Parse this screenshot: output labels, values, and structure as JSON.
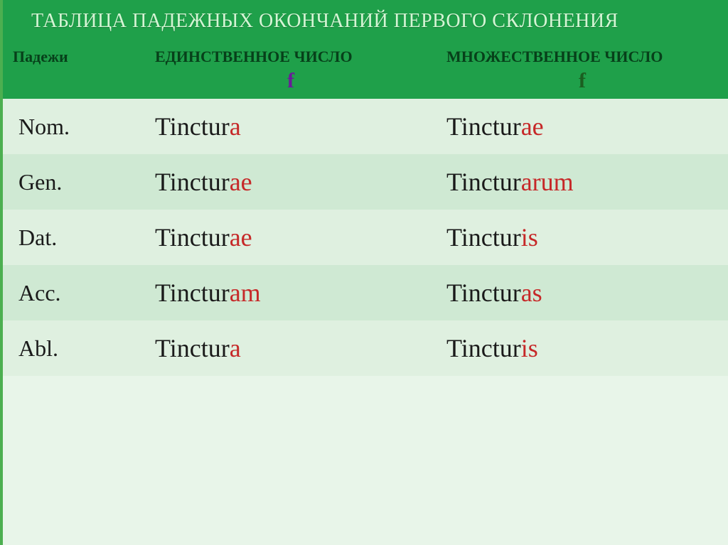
{
  "title": "ТАБЛИЦА ПАДЕЖНЫХ ОКОНЧАНИЙ ПЕРВОГО СКЛОНЕНИЯ",
  "columns": {
    "case_header": "Падежи",
    "singular": {
      "label": "ЕДИНСТВЕННОЕ ЧИСЛО",
      "gender": "f",
      "gender_color": "#6a1b9a"
    },
    "plural": {
      "label": "МНОЖЕСТВЕННОЕ  ЧИСЛО",
      "gender": "f",
      "gender_color": "#1b5e20"
    }
  },
  "stem": "Tinctur",
  "rows": [
    {
      "case": "Nom.",
      "sg_stem": "Tinctur",
      "sg_end": "a",
      "pl_stem": "Tinctur",
      "pl_end": "ae"
    },
    {
      "case": "Gen.",
      "sg_stem": "Tinctur",
      "sg_end": "ae",
      "pl_stem": "Tinctur",
      "pl_end": "arum"
    },
    {
      "case": "Dat.",
      "sg_stem": "Tinctur",
      "sg_end": "ae",
      "pl_stem": "Tinctur",
      "pl_end": "is"
    },
    {
      "case": "Acc.",
      "sg_stem": "Tinctur",
      "sg_end": "am",
      "pl_stem": "Tinctur",
      "pl_end": "as"
    },
    {
      "case": "Abl.",
      "sg_stem": "Tinctur",
      "sg_end": "a",
      "pl_stem": "Tinctur",
      "pl_end": "is"
    }
  ],
  "style": {
    "header_bg": "#1fa04a",
    "row_odd_bg": "#dff0e0",
    "row_even_bg": "#cfe9d3",
    "ending_color": "#c62828",
    "title_color": "#d4f5d4",
    "th_text_color": "#07401a",
    "cell_fontsize": 36,
    "case_fontsize": 32,
    "title_fontsize": 28
  }
}
